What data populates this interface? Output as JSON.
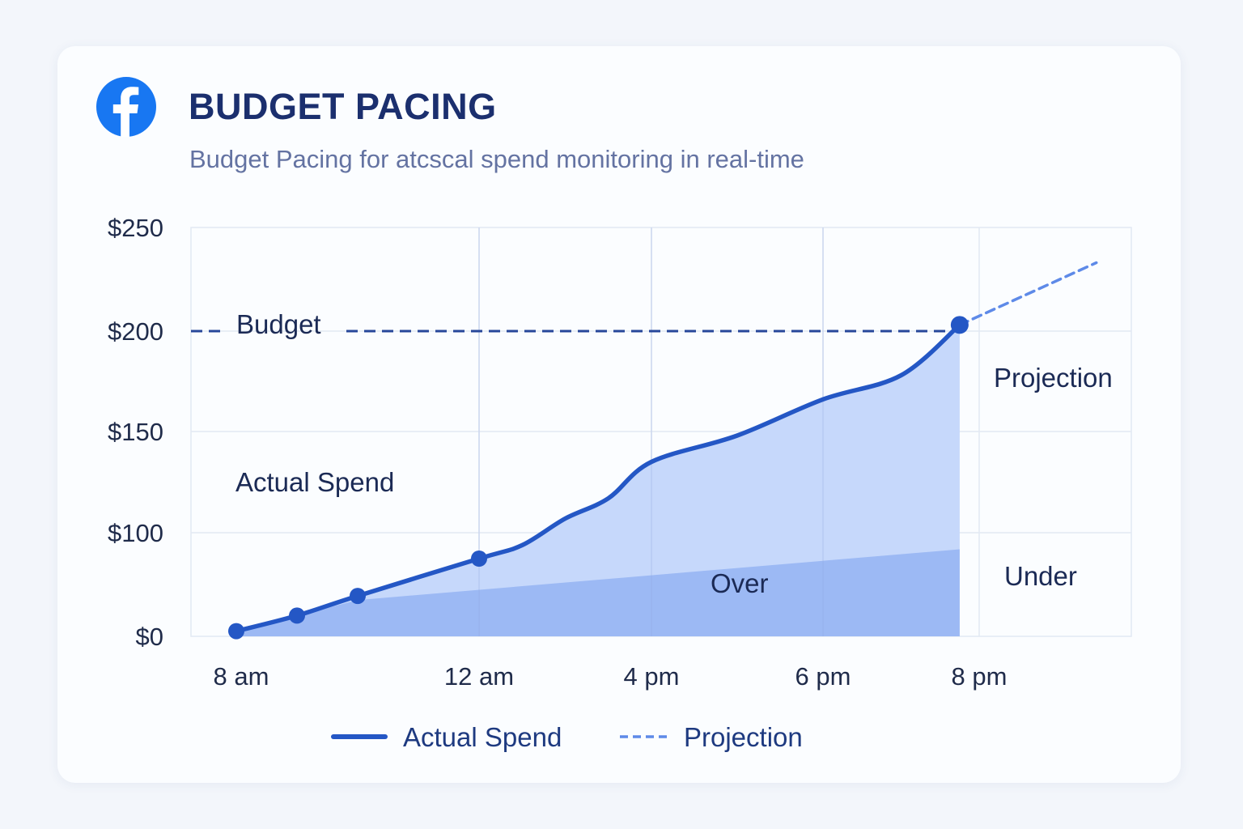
{
  "header": {
    "title": "BUDGET PACING",
    "subtitle": "Budget Pacing for atcscal spend monitoring in real-time",
    "logo_icon": "facebook-logo-icon"
  },
  "colors": {
    "primary": "#2457c5",
    "budget_line": "#27479a",
    "projection": "#5e8ae8",
    "area_light": "#c6d8fb",
    "area_dark": "#9cb9f4",
    "grid": "#e2e9f4",
    "logo": "#1877f2"
  },
  "chart_data": {
    "type": "area",
    "x_ticks": [
      "8 am",
      "12 am",
      "4 pm",
      "6 pm",
      "8 pm"
    ],
    "y_ticks": [
      "$0",
      "$100",
      "$150",
      "$200",
      "$250"
    ],
    "ylim": [
      0,
      250
    ],
    "grid": true,
    "budget": {
      "label": "Budget",
      "value": 200
    },
    "series": [
      {
        "name": "Actual Spend",
        "style": "solid-with-markers",
        "points": [
          {
            "x": "8 am",
            "y": 5
          },
          {
            "x": "9 am",
            "y": 20
          },
          {
            "x": "10 am",
            "y": 39
          },
          {
            "x": "12 am",
            "y": 75
          },
          {
            "x": "1 pm",
            "y": 88
          },
          {
            "x": "2 pm",
            "y": 107
          },
          {
            "x": "3 pm",
            "y": 117
          },
          {
            "x": "4 pm",
            "y": 135
          },
          {
            "x": "5 pm",
            "y": 148
          },
          {
            "x": "6 pm",
            "y": 166
          },
          {
            "x": "7 pm",
            "y": 178
          },
          {
            "x": "7:45 pm",
            "y": 203
          }
        ],
        "markers": [
          "8 am",
          "9 am",
          "10 am",
          "12 am",
          "7:45 pm"
        ]
      },
      {
        "name": "Projection",
        "style": "dashed",
        "points": [
          {
            "x": "7:45 pm",
            "y": 203
          },
          {
            "x": "9:30 pm",
            "y": 233
          }
        ]
      }
    ],
    "regions": {
      "over": {
        "label": "Over",
        "points": [
          {
            "x": "10 am",
            "y": 35
          },
          {
            "x": "7:45 pm",
            "y": 84
          }
        ]
      },
      "under": {
        "label": "Under"
      }
    },
    "annotations": {
      "actual_spend": "Actual Spend",
      "projection": "Projection"
    },
    "legend": {
      "position": "bottom-center",
      "items": [
        {
          "label": "Actual Spend",
          "style": "solid"
        },
        {
          "label": "Projection",
          "style": "dashed"
        }
      ]
    }
  }
}
